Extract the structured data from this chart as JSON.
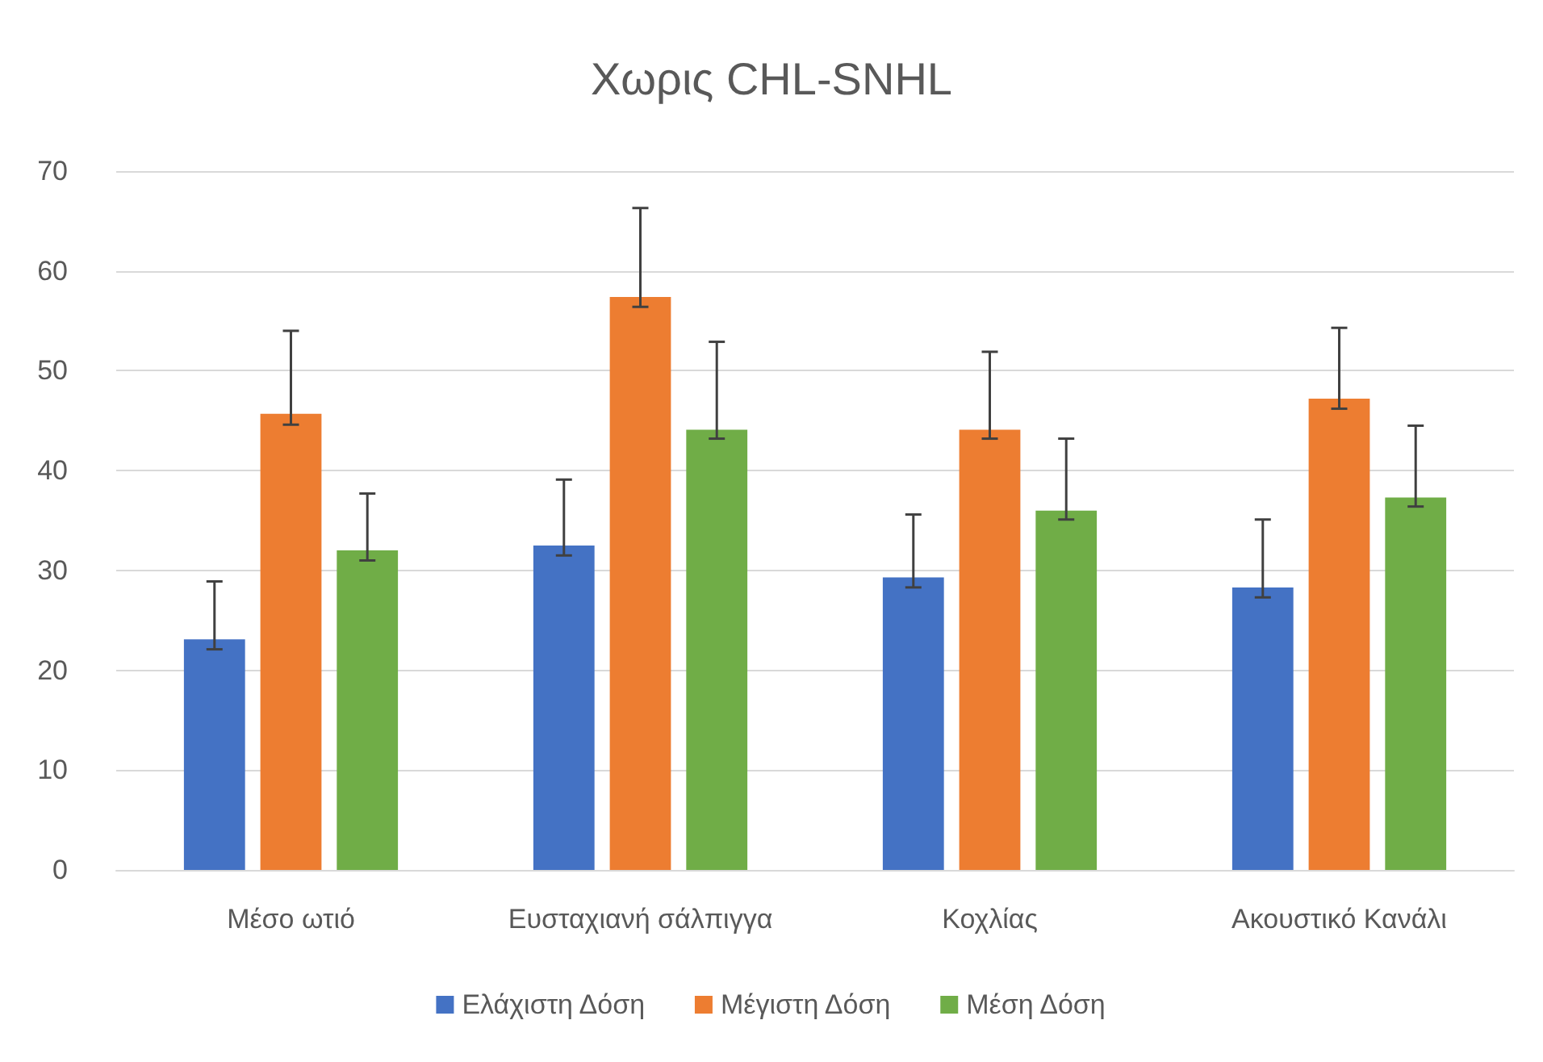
{
  "chart_data": {
    "type": "bar",
    "title": "Χωρις CHL-SNHL",
    "categories": [
      "Μέσο ωτιό",
      "Ευσταχιανή σάλπιγγα",
      "Κοχλίας",
      "Ακουστικό Κανάλι"
    ],
    "series": [
      {
        "name": "Ελάχιστη Δόση",
        "color": "#4472c4",
        "values": [
          23.1,
          32.5,
          29.3,
          28.3
        ],
        "errors": [
          [
            22.1,
            28.9
          ],
          [
            31.5,
            39.1
          ],
          [
            28.3,
            35.6
          ],
          [
            27.3,
            35.1
          ]
        ]
      },
      {
        "name": "Μέγιστη Δόση",
        "color": "#ed7d31",
        "values": [
          45.7,
          57.4,
          44.1,
          47.2
        ],
        "errors": [
          [
            44.6,
            54.0
          ],
          [
            56.4,
            66.3
          ],
          [
            43.2,
            51.9
          ],
          [
            46.2,
            54.3
          ]
        ]
      },
      {
        "name": "Μέση Δόση",
        "color": "#70ad47",
        "values": [
          32.0,
          44.1,
          36.0,
          37.3
        ],
        "errors": [
          [
            31.0,
            37.7
          ],
          [
            43.2,
            52.9
          ],
          [
            35.1,
            43.2
          ],
          [
            36.4,
            44.5
          ]
        ]
      }
    ],
    "ylim": [
      0,
      70
    ],
    "yticks": [
      0,
      10,
      20,
      30,
      40,
      50,
      60,
      70
    ],
    "grid": "y",
    "legend": "bottom"
  }
}
